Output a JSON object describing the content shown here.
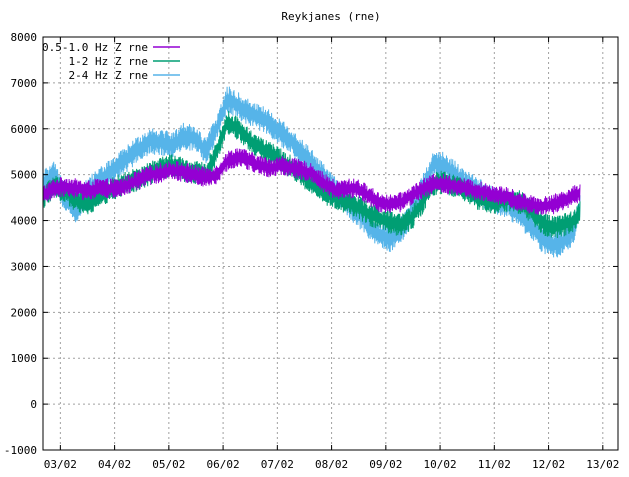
{
  "chart_data": {
    "type": "line",
    "title": "Reykjanes (rne)",
    "xlabel": "",
    "ylabel": "",
    "ylim": [
      -1000,
      8000
    ],
    "yticks": [
      -1000,
      0,
      1000,
      2000,
      3000,
      4000,
      5000,
      6000,
      7000,
      8000
    ],
    "xlim": [
      2.7,
      13.3
    ],
    "xticks": [
      {
        "value": 3.02,
        "label": "03/02"
      },
      {
        "value": 4.02,
        "label": "04/02"
      },
      {
        "value": 5.02,
        "label": "05/02"
      },
      {
        "value": 6.02,
        "label": "06/02"
      },
      {
        "value": 7.02,
        "label": "07/02"
      },
      {
        "value": 8.02,
        "label": "08/02"
      },
      {
        "value": 9.02,
        "label": "09/02"
      },
      {
        "value": 10.02,
        "label": "10/02"
      },
      {
        "value": 11.02,
        "label": "11/02"
      },
      {
        "value": 12.02,
        "label": "12/02"
      },
      {
        "value": 13.02,
        "label": "13/02"
      }
    ],
    "grid": true,
    "legend_position": "top-left",
    "series": [
      {
        "name": "0.5-1.0 Hz Z rne",
        "color": "#9400d3",
        "x": [
          2.7,
          2.9,
          3.1,
          3.3,
          3.5,
          3.7,
          3.9,
          4.1,
          4.3,
          4.5,
          4.7,
          4.9,
          5.1,
          5.3,
          5.5,
          5.7,
          5.9,
          6.1,
          6.3,
          6.5,
          6.7,
          6.9,
          7.1,
          7.3,
          7.5,
          7.7,
          7.9,
          8.1,
          8.3,
          8.5,
          8.7,
          8.9,
          9.1,
          9.3,
          9.5,
          9.7,
          9.9,
          10.1,
          10.3,
          10.5,
          10.7,
          10.9,
          11.1,
          11.3,
          11.5,
          11.7,
          11.9,
          12.1,
          12.3,
          12.5,
          12.6
        ],
        "y": [
          4550,
          4700,
          4750,
          4700,
          4650,
          4700,
          4700,
          4700,
          4800,
          4900,
          5000,
          5050,
          5100,
          5050,
          5000,
          4950,
          5000,
          5300,
          5400,
          5300,
          5200,
          5150,
          5200,
          5150,
          5100,
          5000,
          4800,
          4650,
          4700,
          4700,
          4550,
          4400,
          4350,
          4400,
          4550,
          4700,
          4800,
          4800,
          4750,
          4700,
          4650,
          4600,
          4550,
          4500,
          4400,
          4350,
          4300,
          4350,
          4450,
          4550,
          4600
        ],
        "noise": 220
      },
      {
        "name": "1-2 Hz Z rne",
        "color": "#009e73",
        "x": [
          2.7,
          2.9,
          3.1,
          3.3,
          3.5,
          3.7,
          3.9,
          4.1,
          4.3,
          4.5,
          4.7,
          4.9,
          5.1,
          5.3,
          5.5,
          5.7,
          5.9,
          6.1,
          6.3,
          6.5,
          6.7,
          6.9,
          7.1,
          7.3,
          7.5,
          7.7,
          7.9,
          8.1,
          8.3,
          8.5,
          8.7,
          8.9,
          9.1,
          9.3,
          9.5,
          9.7,
          9.9,
          10.1,
          10.3,
          10.5,
          10.7,
          10.9,
          11.1,
          11.3,
          11.5,
          11.7,
          11.9,
          12.1,
          12.3,
          12.5,
          12.6
        ],
        "y": [
          4500,
          4750,
          4650,
          4450,
          4350,
          4500,
          4650,
          4750,
          4850,
          4900,
          5050,
          5150,
          5200,
          5100,
          5050,
          5000,
          5500,
          6150,
          6000,
          5750,
          5600,
          5450,
          5300,
          5150,
          4950,
          4750,
          4600,
          4500,
          4400,
          4300,
          4150,
          4050,
          3950,
          3900,
          4050,
          4400,
          4800,
          4850,
          4750,
          4650,
          4500,
          4400,
          4400,
          4450,
          4400,
          4200,
          3950,
          3850,
          3900,
          4000,
          4200
        ],
        "noise": 260
      },
      {
        "name": "2-4 Hz Z rne",
        "color": "#56b4e9",
        "x": [
          2.7,
          2.9,
          3.1,
          3.3,
          3.5,
          3.7,
          3.9,
          4.1,
          4.3,
          4.5,
          4.7,
          4.9,
          5.1,
          5.3,
          5.5,
          5.7,
          5.9,
          6.1,
          6.3,
          6.5,
          6.7,
          6.9,
          7.1,
          7.3,
          7.5,
          7.7,
          7.9,
          8.1,
          8.3,
          8.5,
          8.7,
          8.9,
          9.1,
          9.3,
          9.5,
          9.7,
          9.9,
          10.1,
          10.3,
          10.5,
          10.7,
          10.9,
          11.1,
          11.3,
          11.5,
          11.7,
          11.9,
          12.1,
          12.3,
          12.5,
          12.6
        ],
        "y": [
          4800,
          5000,
          4500,
          4200,
          4600,
          4850,
          5000,
          5200,
          5400,
          5600,
          5750,
          5700,
          5650,
          5850,
          5800,
          5500,
          6000,
          6650,
          6500,
          6350,
          6250,
          6100,
          5900,
          5700,
          5450,
          5200,
          4900,
          4650,
          4400,
          4150,
          3900,
          3700,
          3600,
          3800,
          4200,
          4700,
          5250,
          5200,
          5000,
          4800,
          4650,
          4500,
          4400,
          4300,
          4100,
          3900,
          3600,
          3450,
          3550,
          3800,
          4300
        ],
        "noise": 300
      }
    ]
  }
}
